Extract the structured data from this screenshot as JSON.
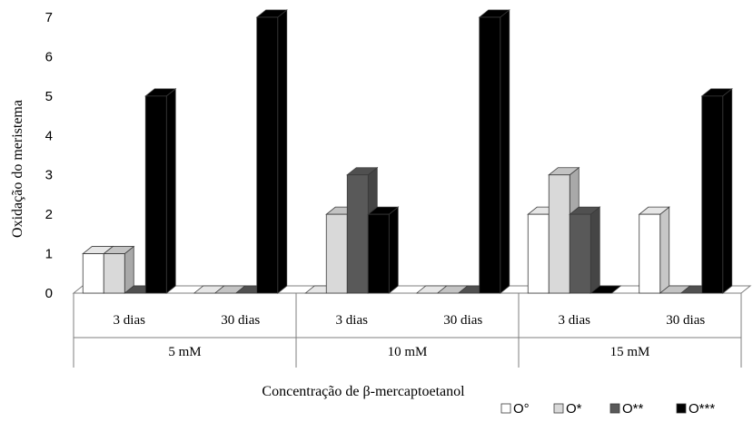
{
  "chart_data": {
    "type": "bar",
    "ylabel": "Oxidação  do meristema",
    "xlabel": "Concentração de β-mercaptoetanol",
    "ylim": [
      0,
      7
    ],
    "yticks": [
      0,
      1,
      2,
      3,
      4,
      5,
      6,
      7
    ],
    "groups": [
      {
        "label": "5 mM",
        "subcategories": [
          "3 dias",
          "30 dias"
        ]
      },
      {
        "label": "10 mM",
        "subcategories": [
          "3 dias",
          "30 dias"
        ]
      },
      {
        "label": "15 mM",
        "subcategories": [
          "3 dias",
          "30 dias"
        ]
      }
    ],
    "categories": [
      "3 dias",
      "30 dias",
      "3 dias",
      "30 dias",
      "3 dias",
      "30 dias"
    ],
    "series": [
      {
        "name": "O°",
        "color": "#ffffff",
        "values": [
          1,
          0,
          0,
          0,
          2,
          2
        ]
      },
      {
        "name": "O*",
        "color": "#d9d9d9",
        "values": [
          1,
          0,
          2,
          0,
          3,
          0
        ]
      },
      {
        "name": "O**",
        "color": "#595959",
        "values": [
          0,
          0,
          3,
          0,
          2,
          0
        ]
      },
      {
        "name": "O***",
        "color": "#000000",
        "values": [
          5,
          7,
          2,
          7,
          0,
          5
        ]
      }
    ],
    "legend_position": "bottom-right",
    "grid": false
  }
}
